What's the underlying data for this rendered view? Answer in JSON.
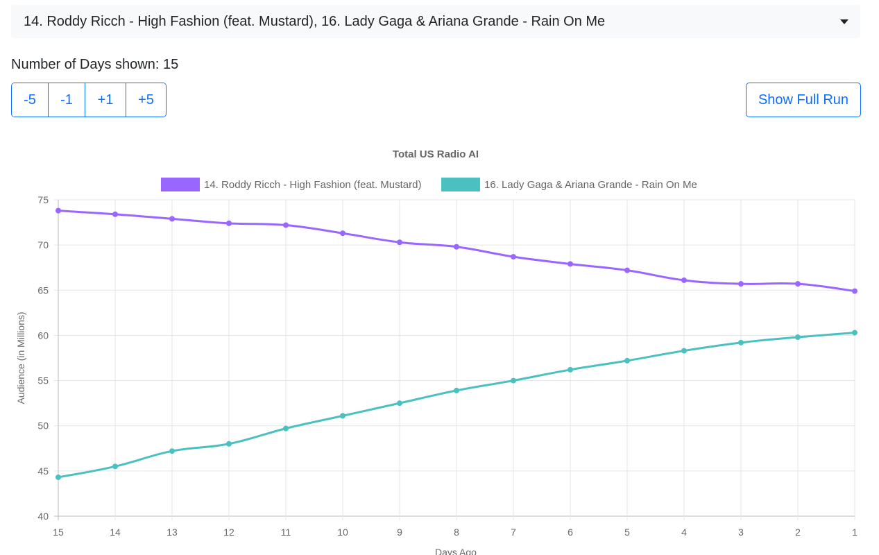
{
  "selector": {
    "value": "14. Roddy Ricch - High Fashion (feat. Mustard), 16. Lady Gaga & Ariana Grande - Rain On Me"
  },
  "days": {
    "label": "Number of Days shown: 15"
  },
  "controls": {
    "buttons": [
      "-5",
      "-1",
      "+1",
      "+5"
    ],
    "full_run": "Show Full Run"
  },
  "chart_data": {
    "type": "line",
    "title": "Total US Radio AI",
    "xlabel": "Days Ago",
    "ylabel": "Audience (in Millions)",
    "ylim": [
      40,
      75
    ],
    "yticks": [
      40,
      45,
      50,
      55,
      60,
      65,
      70,
      75
    ],
    "x": [
      15,
      14,
      13,
      12,
      11,
      10,
      9,
      8,
      7,
      6,
      5,
      4,
      3,
      2,
      1
    ],
    "grid": true,
    "legend_position": "top",
    "series": [
      {
        "name": "14. Roddy Ricch - High Fashion (feat. Mustard)",
        "color": "#9966ff",
        "values": [
          73.8,
          73.4,
          72.9,
          72.4,
          72.2,
          71.3,
          70.3,
          69.8,
          68.7,
          67.9,
          67.2,
          66.1,
          65.7,
          65.7,
          64.9
        ]
      },
      {
        "name": "16. Lady Gaga & Ariana Grande - Rain On Me",
        "color": "#4bc0c0",
        "values": [
          44.3,
          45.5,
          47.2,
          48.0,
          49.7,
          51.1,
          52.5,
          53.9,
          55.0,
          56.2,
          57.2,
          58.3,
          59.2,
          59.8,
          60.3
        ]
      }
    ]
  }
}
